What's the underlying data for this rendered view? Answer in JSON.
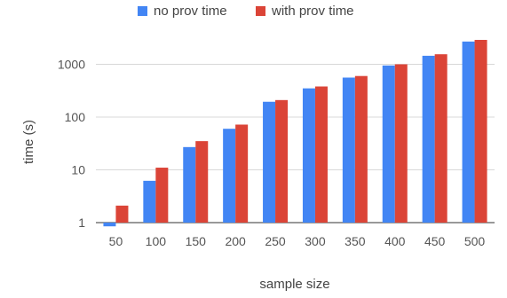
{
  "chart_data": {
    "type": "bar",
    "yscale": "log",
    "xlabel": "sample size",
    "ylabel": "time (s)",
    "categories": [
      "50",
      "100",
      "150",
      "200",
      "250",
      "300",
      "350",
      "400",
      "450",
      "500"
    ],
    "y_ticks": [
      "1",
      "10",
      "100",
      "1000"
    ],
    "ylim": [
      1,
      4500
    ],
    "grid": true,
    "legend_position": "top",
    "series": [
      {
        "name": "no prov time",
        "color": "#4285f4",
        "values": [
          0.85,
          6.2,
          27,
          60,
          195,
          350,
          560,
          950,
          1450,
          2700
        ]
      },
      {
        "name": "with prov time",
        "color": "#db4437",
        "values": [
          2.1,
          11,
          35,
          72,
          210,
          380,
          600,
          1000,
          1550,
          2900
        ]
      }
    ]
  }
}
